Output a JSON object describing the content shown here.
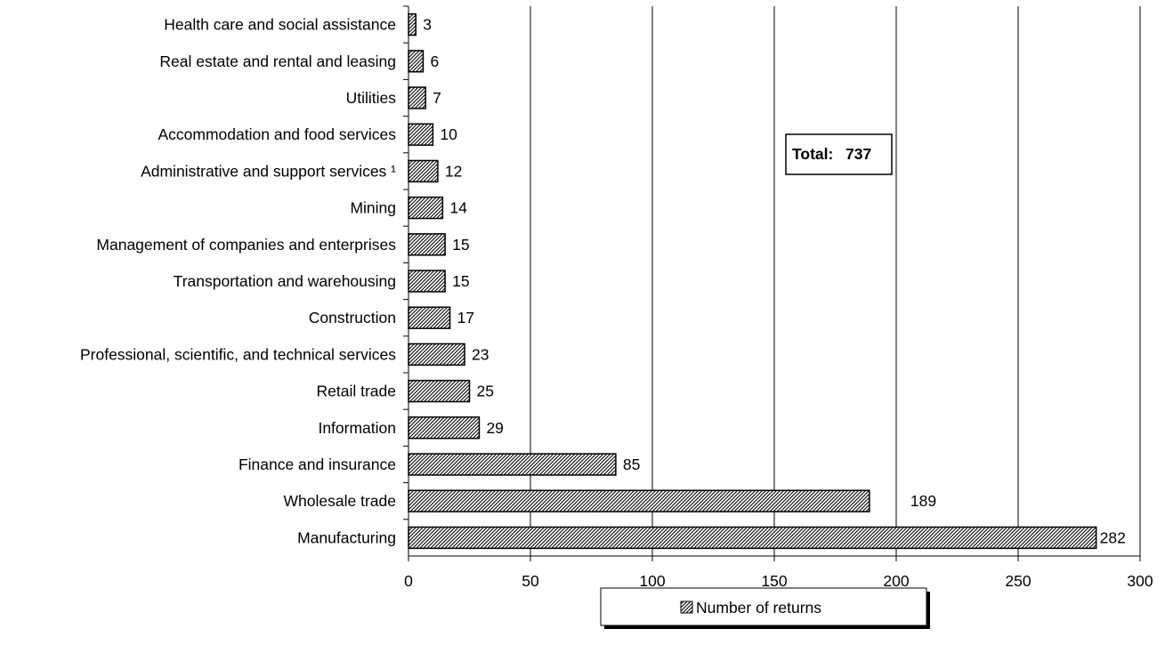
{
  "chart_data": {
    "type": "bar",
    "orientation": "horizontal",
    "categories": [
      "Health care and social assistance",
      "Real estate and rental and leasing",
      "Utilities",
      "Accommodation and food services",
      "Administrative and support services ¹",
      "Mining",
      "Management of companies and enterprises",
      "Transportation and warehousing",
      "Construction",
      "Professional, scientific, and technical services",
      "Retail trade",
      "Information",
      "Finance and insurance",
      "Wholesale trade",
      "Manufacturing"
    ],
    "series": [
      {
        "name": "Number of returns",
        "values": [
          3,
          6,
          7,
          10,
          12,
          14,
          15,
          15,
          17,
          23,
          25,
          29,
          85,
          189,
          282
        ]
      }
    ],
    "xlim": [
      0,
      300
    ],
    "xticks": [
      0,
      50,
      100,
      150,
      200,
      250,
      300
    ],
    "grid": "vertical",
    "legend_position": "bottom",
    "annotation": {
      "label": "Total:",
      "value": "737"
    }
  }
}
